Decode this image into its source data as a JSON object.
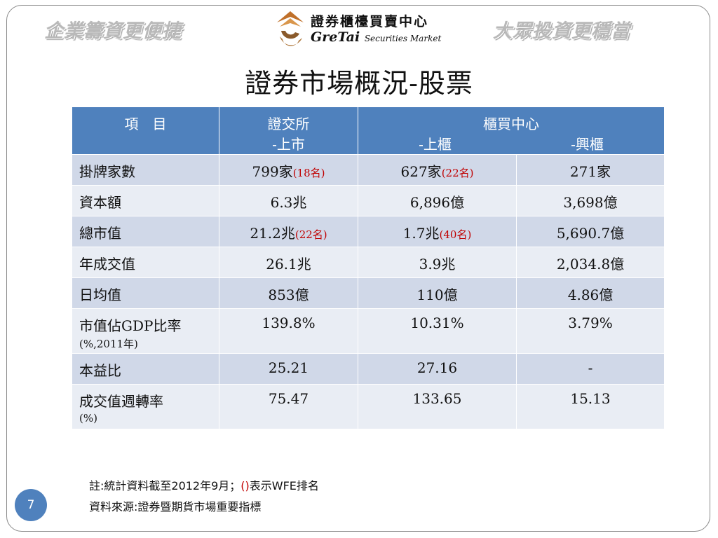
{
  "header": {
    "slogan_left": "企業籌資更便捷",
    "slogan_right": "大眾投資更穩當",
    "logo_cn": "證券櫃檯買賣中心",
    "logo_en_main": "GreTai",
    "logo_en_sub": "Securities Market"
  },
  "title": "證券市場概況-股票",
  "table": {
    "headers": {
      "item": "項　目",
      "twse": "證交所",
      "twse_sub": "-上市",
      "gretai": "櫃買中心",
      "gretai_sub1": "-上櫃",
      "gretai_sub2": "-興櫃"
    },
    "rows": [
      {
        "item": "掛牌家數",
        "item_note": "",
        "twse": "799家",
        "twse_rank": "(18名)",
        "otc": "627家",
        "otc_rank": "(22名)",
        "emerging": "271家"
      },
      {
        "item": "資本額",
        "item_note": "",
        "twse": "6.3兆",
        "twse_rank": "",
        "otc": "6,896億",
        "otc_rank": "",
        "emerging": "3,698億"
      },
      {
        "item": "總市值",
        "item_note": "",
        "twse": "21.2兆",
        "twse_rank": "(22名)",
        "otc": "1.7兆",
        "otc_rank": "(40名)",
        "emerging": "5,690.7億"
      },
      {
        "item": "年成交值",
        "item_note": "",
        "twse": "26.1兆",
        "twse_rank": "",
        "otc": "3.9兆",
        "otc_rank": "",
        "emerging": "2,034.8億"
      },
      {
        "item": "日均值",
        "item_note": "",
        "twse": "853億",
        "twse_rank": "",
        "otc": "110億",
        "otc_rank": "",
        "emerging": "4.86億"
      },
      {
        "item": "市值佔GDP比率",
        "item_note": "(%,2011年)",
        "twse": "139.8%",
        "twse_rank": "",
        "otc": "10.31%",
        "otc_rank": "",
        "emerging": "3.79%"
      },
      {
        "item": "本益比",
        "item_note": "",
        "twse": "25.21",
        "twse_rank": "",
        "otc": "27.16",
        "otc_rank": "",
        "emerging": "-"
      },
      {
        "item": "成交值週轉率",
        "item_note": "(%)",
        "twse": "75.47",
        "twse_rank": "",
        "otc": "133.65",
        "otc_rank": "",
        "emerging": "15.13"
      }
    ]
  },
  "notes": {
    "line1_pre": "註:統計資料截至2012年9月；",
    "line1_paren": "()",
    "line1_post": "表示WFE排名",
    "line2": "資料來源:證券暨期貨市場重要指標"
  },
  "page_number": "7",
  "colors": {
    "header_blue": "#4f81bd",
    "row_dark": "#d0d8e8",
    "row_light": "#e9edf4",
    "rank_red": "#c00000"
  }
}
